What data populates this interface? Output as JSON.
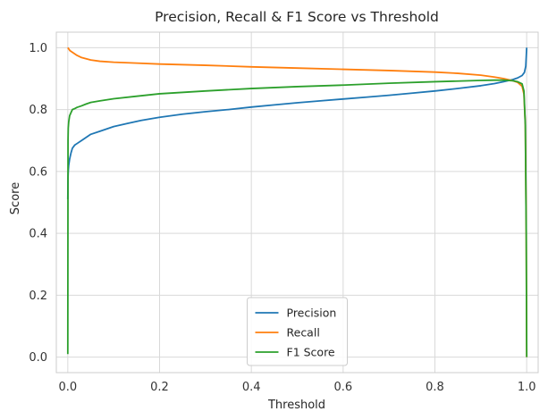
{
  "chart_data": {
    "type": "line",
    "title": "Precision, Recall & F1 Score vs Threshold",
    "xlabel": "Threshold",
    "ylabel": "Score",
    "xlim": [
      -0.025,
      1.025
    ],
    "ylim": [
      -0.05,
      1.05
    ],
    "xticks": [
      0.0,
      0.2,
      0.4,
      0.6,
      0.8,
      1.0
    ],
    "yticks": [
      0.0,
      0.2,
      0.4,
      0.6,
      0.8,
      1.0
    ],
    "xtick_labels": [
      "0.0",
      "0.2",
      "0.4",
      "0.6",
      "0.8",
      "1.0"
    ],
    "ytick_labels": [
      "0.0",
      "0.2",
      "0.4",
      "0.6",
      "0.8",
      "1.0"
    ],
    "grid": true,
    "legend_position": "lower-center",
    "series": [
      {
        "name": "Precision",
        "color": "#1f77b4",
        "x": [
          0.0,
          0.0005,
          0.001,
          0.002,
          0.004,
          0.007,
          0.01,
          0.015,
          0.02,
          0.03,
          0.04,
          0.05,
          0.07,
          0.1,
          0.13,
          0.16,
          0.2,
          0.25,
          0.3,
          0.35,
          0.4,
          0.45,
          0.5,
          0.55,
          0.6,
          0.65,
          0.7,
          0.75,
          0.8,
          0.85,
          0.9,
          0.93,
          0.95,
          0.97,
          0.98,
          0.99,
          0.995,
          0.998,
          1.0
        ],
        "y": [
          0.51,
          0.58,
          0.6,
          0.62,
          0.64,
          0.66,
          0.675,
          0.685,
          0.69,
          0.7,
          0.71,
          0.72,
          0.73,
          0.745,
          0.755,
          0.765,
          0.775,
          0.785,
          0.793,
          0.8,
          0.808,
          0.815,
          0.822,
          0.828,
          0.834,
          0.84,
          0.846,
          0.853,
          0.86,
          0.868,
          0.877,
          0.884,
          0.89,
          0.897,
          0.902,
          0.91,
          0.92,
          0.94,
          1.0
        ]
      },
      {
        "name": "Recall",
        "color": "#ff7f0e",
        "x": [
          0.0,
          0.005,
          0.01,
          0.02,
          0.03,
          0.05,
          0.07,
          0.1,
          0.15,
          0.2,
          0.3,
          0.4,
          0.5,
          0.6,
          0.7,
          0.8,
          0.85,
          0.9,
          0.93,
          0.95,
          0.97,
          0.98,
          0.99,
          0.994,
          0.997,
          0.999,
          1.0
        ],
        "y": [
          1.0,
          0.99,
          0.985,
          0.975,
          0.968,
          0.96,
          0.956,
          0.953,
          0.95,
          0.947,
          0.943,
          0.938,
          0.934,
          0.93,
          0.926,
          0.921,
          0.917,
          0.911,
          0.905,
          0.9,
          0.893,
          0.888,
          0.875,
          0.85,
          0.75,
          0.4,
          0.0
        ]
      },
      {
        "name": "F1 Score",
        "color": "#2ca02c",
        "x": [
          0.0,
          0.0005,
          0.001,
          0.002,
          0.004,
          0.007,
          0.01,
          0.015,
          0.02,
          0.03,
          0.04,
          0.05,
          0.07,
          0.1,
          0.15,
          0.2,
          0.3,
          0.4,
          0.5,
          0.6,
          0.7,
          0.8,
          0.85,
          0.9,
          0.93,
          0.95,
          0.97,
          0.98,
          0.99,
          0.994,
          0.997,
          0.999,
          1.0
        ],
        "y": [
          0.01,
          0.7,
          0.74,
          0.76,
          0.78,
          0.79,
          0.8,
          0.803,
          0.807,
          0.812,
          0.818,
          0.823,
          0.828,
          0.835,
          0.843,
          0.851,
          0.86,
          0.868,
          0.874,
          0.879,
          0.885,
          0.89,
          0.892,
          0.894,
          0.895,
          0.895,
          0.893,
          0.89,
          0.883,
          0.86,
          0.75,
          0.4,
          0.0
        ]
      }
    ]
  }
}
